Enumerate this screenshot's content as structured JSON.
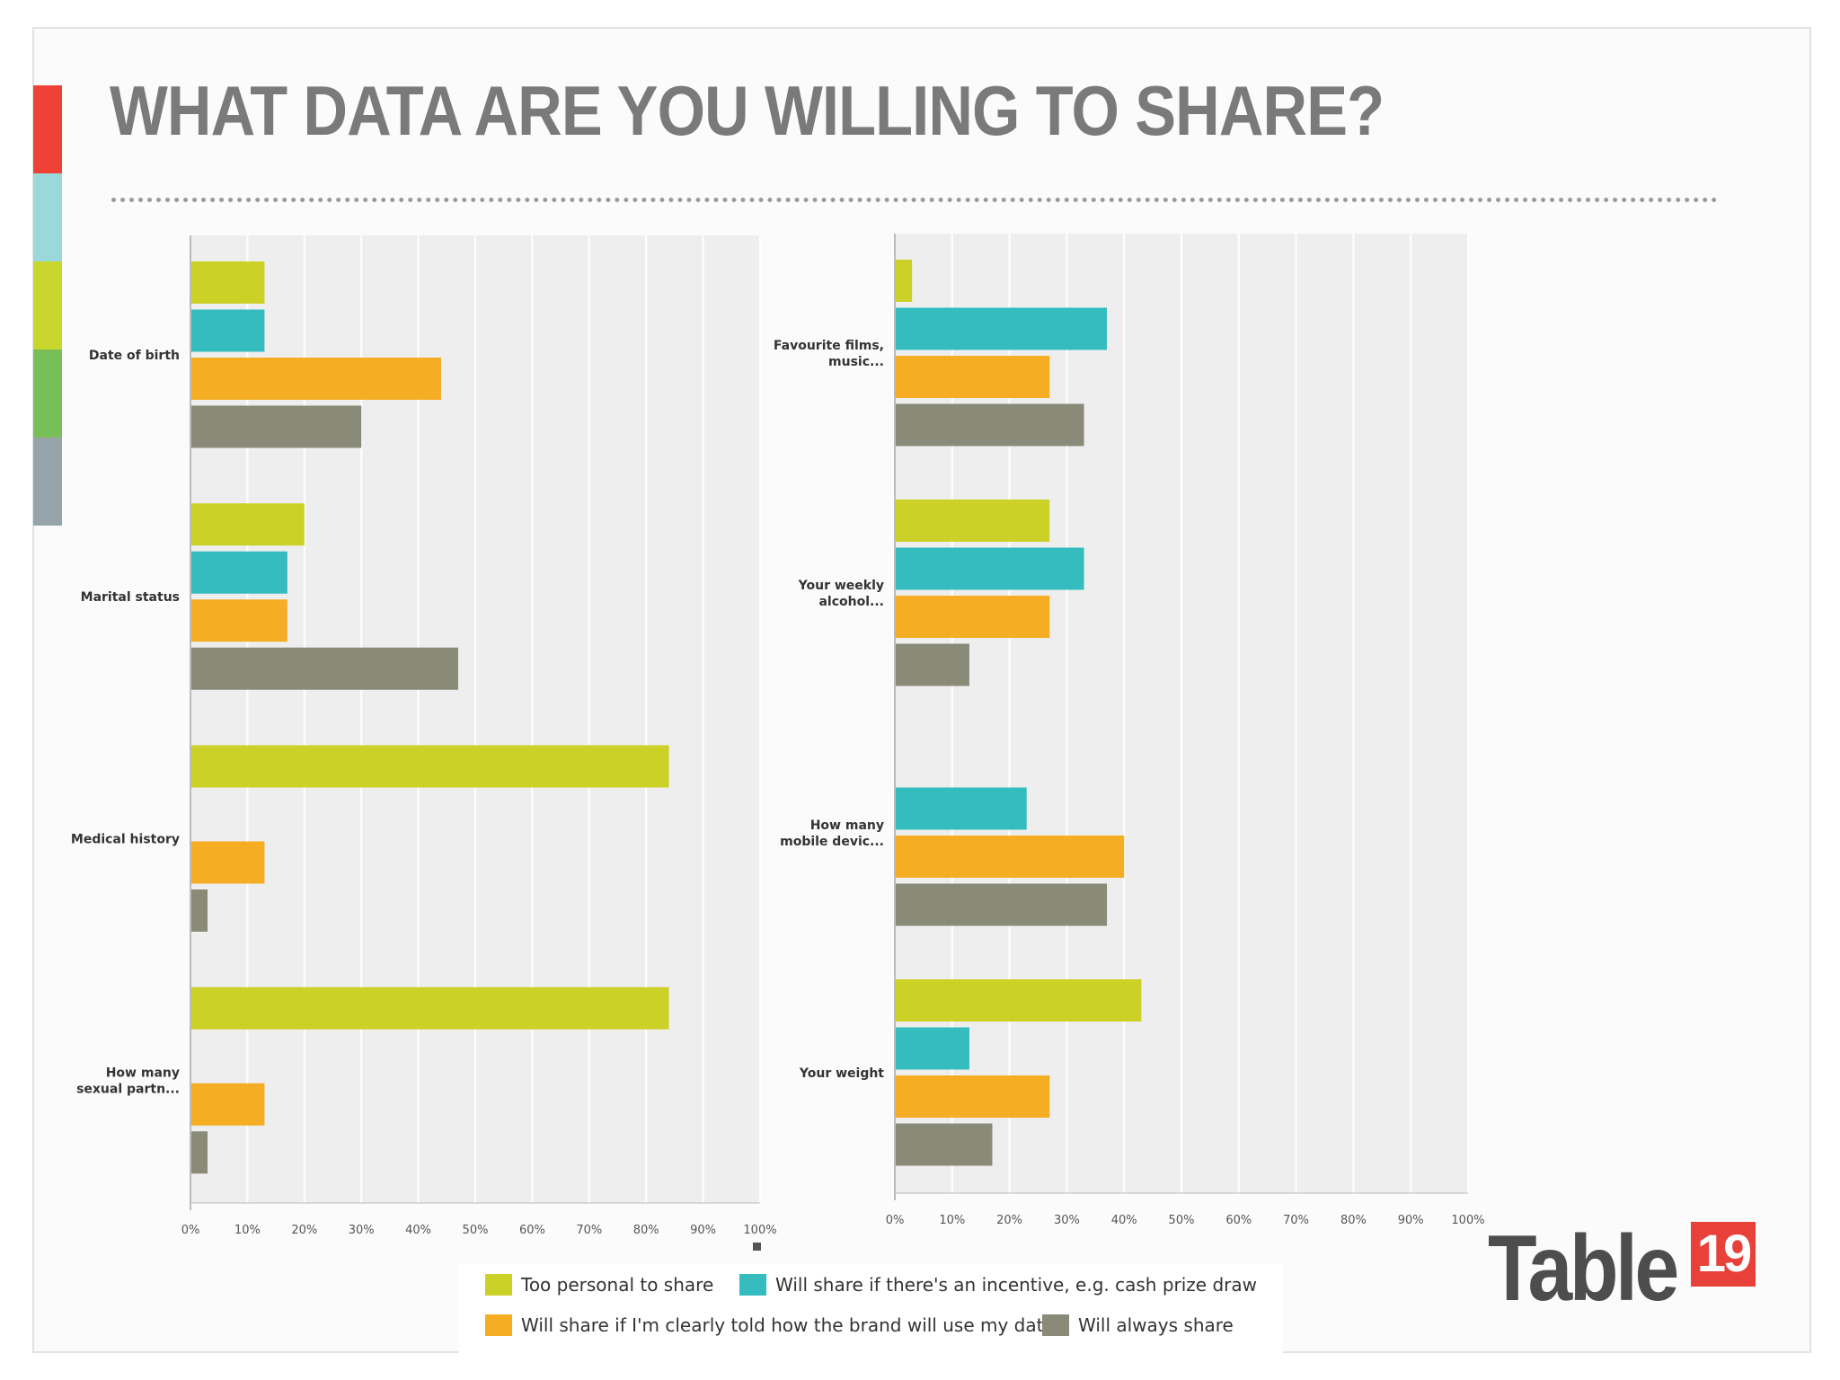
{
  "title": "WHAT DATA ARE YOU WILLING TO SHARE?",
  "stripe_colors": [
    "#ef4136",
    "#9ad8dc",
    "#c9d62d",
    "#78bf5a",
    "#98a4ab"
  ],
  "logo": {
    "word": "Table",
    "badge": "19",
    "badge_color": "#e8413a"
  },
  "legend": [
    {
      "label": "Too personal to share",
      "color": "#ccd128"
    },
    {
      "label": "Will share if there's an incentive, e.g. cash prize draw",
      "color": "#34bcbf"
    },
    {
      "label": "Will share if I'm clearly told how the brand will use my data",
      "color": "#f5ad23"
    },
    {
      "label": "Will always share",
      "color": "#8a8a78"
    }
  ],
  "chart_data": [
    {
      "type": "bar",
      "orientation": "horizontal",
      "categories": [
        "Date of birth",
        "Marital status",
        "Medical history",
        "How many sexual partn..."
      ],
      "xlim": [
        0,
        100
      ],
      "tick_labels": [
        "0%",
        "10%",
        "20%",
        "30%",
        "40%",
        "50%",
        "60%",
        "70%",
        "80%",
        "90%",
        "100%"
      ],
      "grid": true,
      "series": [
        {
          "name": "Too personal to share",
          "values": [
            13,
            20,
            84,
            84
          ]
        },
        {
          "name": "Will share if there's an incentive, e.g. cash prize draw",
          "values": [
            13,
            17,
            0,
            0
          ]
        },
        {
          "name": "Will share if I'm clearly told how the brand will use my data",
          "values": [
            44,
            17,
            13,
            13
          ]
        },
        {
          "name": "Will always share",
          "values": [
            30,
            47,
            3,
            3
          ]
        }
      ]
    },
    {
      "type": "bar",
      "orientation": "horizontal",
      "categories": [
        "Favourite films, music...",
        "Your weekly alcohol...",
        "How many mobile devic...",
        "Your weight"
      ],
      "xlim": [
        0,
        100
      ],
      "tick_labels": [
        "0%",
        "10%",
        "20%",
        "30%",
        "40%",
        "50%",
        "60%",
        "70%",
        "80%",
        "90%",
        "100%"
      ],
      "grid": true,
      "series": [
        {
          "name": "Too personal to share",
          "values": [
            3,
            27,
            0,
            43
          ]
        },
        {
          "name": "Will share if there's an incentive, e.g. cash prize draw",
          "values": [
            37,
            33,
            23,
            13
          ]
        },
        {
          "name": "Will share if I'm clearly told how the brand will use my data",
          "values": [
            27,
            27,
            40,
            27
          ]
        },
        {
          "name": "Will always share",
          "values": [
            33,
            13,
            37,
            17
          ]
        }
      ]
    }
  ]
}
